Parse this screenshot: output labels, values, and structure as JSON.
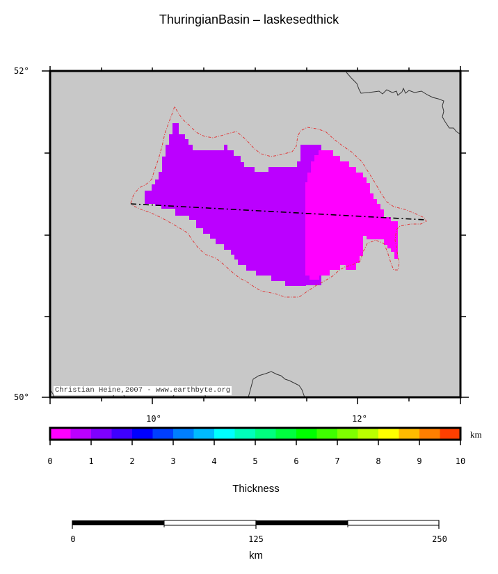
{
  "title": "ThuringianBasin – laskesedthick",
  "map": {
    "region": "Thuringian Basin",
    "variable": "laskesedthick",
    "background_color": "#c8c8c8",
    "lat_labels": [
      {
        "label": "52°",
        "lat": 52
      },
      {
        "label": "50°",
        "lat": 50
      }
    ],
    "lon_labels": [
      {
        "label": "10°",
        "lon": 10
      },
      {
        "label": "12°",
        "lon": 12
      }
    ],
    "credit": "Christian Heine,2007 - www.earthbyte.org",
    "fill_colors": {
      "zone_0_1": "#ff00ff",
      "zone_0_5_1": "#bb00ff"
    },
    "outline_color": "#e03a3a",
    "profile_line": "dash-dot black line across basin"
  },
  "colorbar": {
    "unit": "km",
    "title": "Thickness",
    "ticks": [
      "0",
      "1",
      "2",
      "3",
      "4",
      "5",
      "6",
      "7",
      "8",
      "9",
      "10"
    ],
    "colors": [
      "#ff00ff",
      "#bb00ff",
      "#7f00ff",
      "#3f00ff",
      "#0000ff",
      "#003fff",
      "#007fff",
      "#00bbff",
      "#00ffff",
      "#00ffbb",
      "#00ff7f",
      "#00ff3f",
      "#00ff00",
      "#3fff00",
      "#7fff00",
      "#bbff00",
      "#ffff00",
      "#ffbb00",
      "#ff7f00",
      "#ff3f00"
    ]
  },
  "scalebar": {
    "ticks": [
      "0",
      "125",
      "250"
    ],
    "unit": "km"
  }
}
